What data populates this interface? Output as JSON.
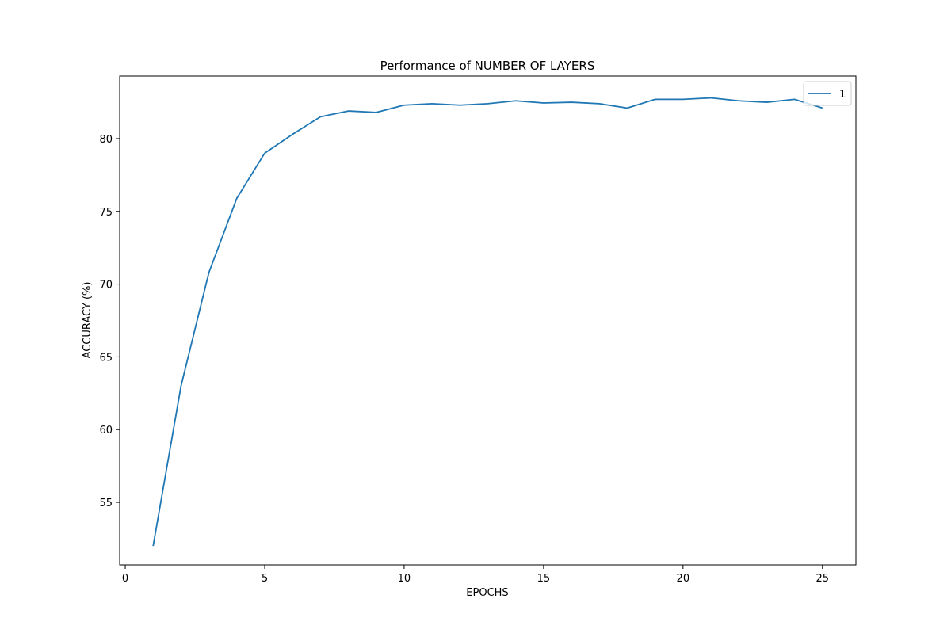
{
  "chart_data": {
    "type": "line",
    "title": "Performance of NUMBER OF LAYERS",
    "xlabel": "EPOCHS",
    "ylabel": "ACCURACY (%)",
    "xlim": [
      -0.2,
      26.2
    ],
    "ylim": [
      50.7,
      84.3
    ],
    "xticks": [
      0,
      5,
      10,
      15,
      20,
      25
    ],
    "yticks": [
      55,
      60,
      65,
      70,
      75,
      80
    ],
    "grid": false,
    "legend": {
      "position": "top-right"
    },
    "series": [
      {
        "name": "1",
        "color": "#1f77b4",
        "x": [
          1,
          2,
          3,
          4,
          5,
          6,
          7,
          8,
          9,
          10,
          11,
          12,
          13,
          14,
          15,
          16,
          17,
          18,
          19,
          20,
          21,
          22,
          23,
          24,
          25
        ],
        "y": [
          52.0,
          63.0,
          70.8,
          75.9,
          79.0,
          80.3,
          81.5,
          81.9,
          81.8,
          82.3,
          82.4,
          82.3,
          82.4,
          82.6,
          82.45,
          82.5,
          82.4,
          82.1,
          82.7,
          82.7,
          82.8,
          82.6,
          82.5,
          82.7,
          82.1
        ]
      }
    ]
  }
}
